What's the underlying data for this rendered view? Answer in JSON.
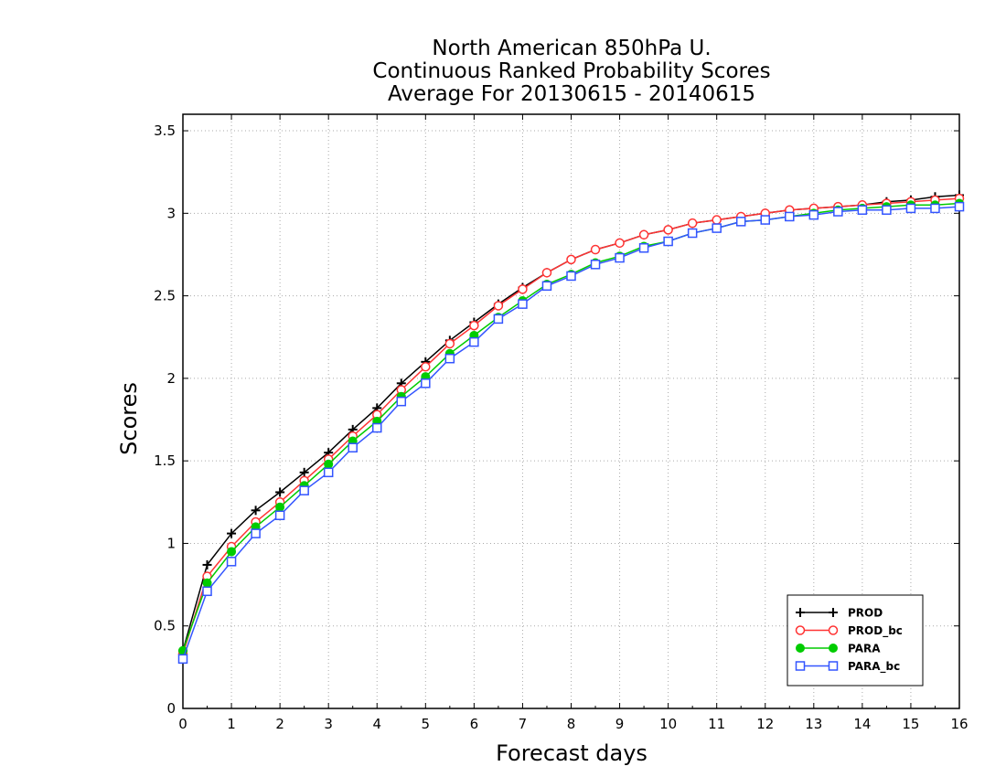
{
  "chart_data": {
    "type": "line",
    "title": [
      "North American 850hPa U.",
      "Continuous Ranked Probability Scores",
      "Average For 20130615 - 20140615"
    ],
    "xlabel": "Forecast days",
    "ylabel": "Scores",
    "xlim": [
      0,
      16
    ],
    "ylim": [
      0,
      3.6
    ],
    "xticks": [
      0,
      1,
      2,
      3,
      4,
      5,
      6,
      7,
      8,
      9,
      10,
      11,
      12,
      13,
      14,
      15,
      16
    ],
    "yticks": [
      0,
      0.5,
      1,
      1.5,
      2,
      2.5,
      3,
      3.5
    ],
    "ytick_labels": [
      "0",
      "0.5",
      "1",
      "1.5",
      "2",
      "2.5",
      "3",
      "3.5"
    ],
    "grid": true,
    "legend_position": "bottom-right",
    "x": [
      0,
      0.5,
      1,
      1.5,
      2,
      2.5,
      3,
      3.5,
      4,
      4.5,
      5,
      5.5,
      6,
      6.5,
      7,
      7.5,
      8,
      8.5,
      9,
      9.5,
      10,
      10.5,
      11,
      11.5,
      12,
      12.5,
      13,
      13.5,
      14,
      14.5,
      15,
      15.5,
      16
    ],
    "series": [
      {
        "name": "PROD",
        "color": "#000000",
        "marker": "plus",
        "values": [
          0.35,
          0.87,
          1.06,
          1.2,
          1.31,
          1.43,
          1.55,
          1.69,
          1.82,
          1.97,
          2.1,
          2.23,
          2.34,
          2.45,
          2.55,
          2.64,
          2.72,
          2.78,
          2.82,
          2.87,
          2.9,
          2.94,
          2.96,
          2.98,
          3.0,
          3.02,
          3.03,
          3.04,
          3.05,
          3.07,
          3.08,
          3.1,
          3.11
        ]
      },
      {
        "name": "PROD_bc",
        "color": "#ff3333",
        "marker": "circle-open",
        "values": [
          0.33,
          0.8,
          0.98,
          1.13,
          1.25,
          1.38,
          1.51,
          1.65,
          1.78,
          1.93,
          2.07,
          2.21,
          2.32,
          2.44,
          2.54,
          2.64,
          2.72,
          2.78,
          2.82,
          2.87,
          2.9,
          2.94,
          2.96,
          2.98,
          3.0,
          3.02,
          3.03,
          3.04,
          3.05,
          3.06,
          3.07,
          3.08,
          3.09
        ]
      },
      {
        "name": "PARA",
        "color": "#00cc00",
        "marker": "circle-filled",
        "values": [
          0.35,
          0.76,
          0.95,
          1.1,
          1.22,
          1.35,
          1.48,
          1.62,
          1.74,
          1.89,
          2.01,
          2.15,
          2.26,
          2.37,
          2.47,
          2.57,
          2.63,
          2.7,
          2.74,
          2.8,
          2.83,
          2.88,
          2.91,
          2.95,
          2.96,
          2.98,
          3.0,
          3.02,
          3.03,
          3.04,
          3.05,
          3.05,
          3.06
        ]
      },
      {
        "name": "PARA_bc",
        "color": "#3355ff",
        "marker": "square-open",
        "values": [
          0.3,
          0.71,
          0.89,
          1.06,
          1.17,
          1.32,
          1.43,
          1.58,
          1.7,
          1.86,
          1.97,
          2.12,
          2.22,
          2.36,
          2.45,
          2.56,
          2.62,
          2.69,
          2.73,
          2.79,
          2.83,
          2.88,
          2.91,
          2.95,
          2.96,
          2.98,
          2.99,
          3.01,
          3.02,
          3.02,
          3.03,
          3.03,
          3.04
        ]
      }
    ]
  }
}
